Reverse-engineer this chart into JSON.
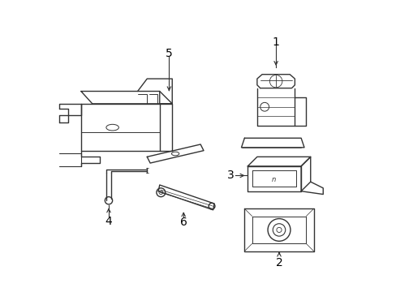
{
  "background_color": "#ffffff",
  "line_color": "#333333",
  "label_color": "#000000",
  "line_width": 1.0,
  "figsize": [
    4.89,
    3.6
  ],
  "dpi": 100
}
